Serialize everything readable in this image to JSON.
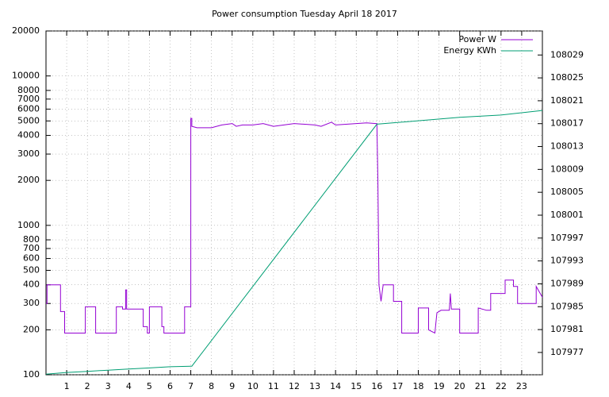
{
  "chart_data": {
    "type": "line",
    "title": "Power consumption Tuesday April 18 2017",
    "xlim": [
      0,
      24
    ],
    "xticks": [
      1,
      2,
      3,
      4,
      5,
      6,
      7,
      8,
      9,
      10,
      11,
      12,
      13,
      14,
      15,
      16,
      17,
      18,
      19,
      20,
      21,
      22,
      23
    ],
    "ylim": [
      100,
      20000
    ],
    "yticks": [
      100,
      200,
      300,
      400,
      500,
      600,
      700,
      800,
      1000,
      2000,
      3000,
      4000,
      5000,
      6000,
      7000,
      8000,
      10000,
      20000
    ],
    "ylog": true,
    "y2lim": [
      107973.1,
      108033.2
    ],
    "y2ticks": [
      107977,
      107981,
      107985,
      107989,
      107993,
      107997,
      108001,
      108005,
      108009,
      108013,
      108017,
      108021,
      108025,
      108029
    ],
    "grid": true,
    "legend": "top-right",
    "series": [
      {
        "name": "Power W",
        "color": "#9400d3",
        "x": [
          0,
          0.05,
          0.05,
          0.7,
          0.7,
          0.9,
          0.9,
          1.9,
          1.9,
          2.4,
          2.4,
          3.4,
          3.4,
          3.7,
          3.7,
          3.85,
          3.85,
          3.9,
          3.9,
          4.7,
          4.7,
          4.9,
          4.9,
          5.0,
          5.0,
          5.6,
          5.6,
          5.7,
          5.7,
          6.7,
          6.7,
          7.0,
          7.0,
          7.05,
          7.05,
          7.3,
          8,
          8.5,
          9,
          9.2,
          9.5,
          10,
          10.5,
          11,
          11.5,
          12,
          13,
          13.3,
          13.8,
          14,
          15,
          15.5,
          15.95,
          16.0,
          16.05,
          16.1,
          16.2,
          16.3,
          16.8,
          16.8,
          17.2,
          17.2,
          18,
          18,
          18.5,
          18.5,
          18.8,
          18.9,
          19.1,
          19.5,
          19.55,
          19.6,
          20,
          20,
          20.9,
          20.9,
          21.3,
          21.5,
          21.5,
          22.2,
          22.2,
          22.6,
          22.6,
          22.8,
          22.8,
          23.7,
          23.7,
          24
        ],
        "values": [
          300,
          300,
          400,
          400,
          265,
          265,
          190,
          190,
          285,
          285,
          190,
          190,
          285,
          285,
          275,
          275,
          370,
          370,
          275,
          275,
          210,
          210,
          190,
          190,
          285,
          285,
          210,
          210,
          190,
          190,
          285,
          285,
          5200,
          5200,
          4600,
          4500,
          4500,
          4700,
          4800,
          4600,
          4700,
          4700,
          4800,
          4600,
          4700,
          4800,
          4700,
          4600,
          4900,
          4700,
          4800,
          4850,
          4800,
          4800,
          1900,
          400,
          310,
          400,
          400,
          310,
          310,
          190,
          190,
          280,
          280,
          200,
          190,
          260,
          270,
          270,
          350,
          275,
          275,
          190,
          190,
          280,
          270,
          270,
          350,
          350,
          430,
          430,
          390,
          390,
          300,
          300,
          390,
          330
        ]
      },
      {
        "name": "Energy KWh",
        "color": "#009e73",
        "axis": "y2",
        "x": [
          0,
          1,
          2,
          3,
          4,
          5,
          6,
          7,
          7.05,
          16,
          20,
          22,
          24
        ],
        "values": [
          107973.2,
          107973.5,
          107973.7,
          107973.9,
          107974.1,
          107974.3,
          107974.5,
          107974.6,
          107974.6,
          108016.9,
          108018.1,
          108018.5,
          108019.3
        ]
      }
    ]
  }
}
